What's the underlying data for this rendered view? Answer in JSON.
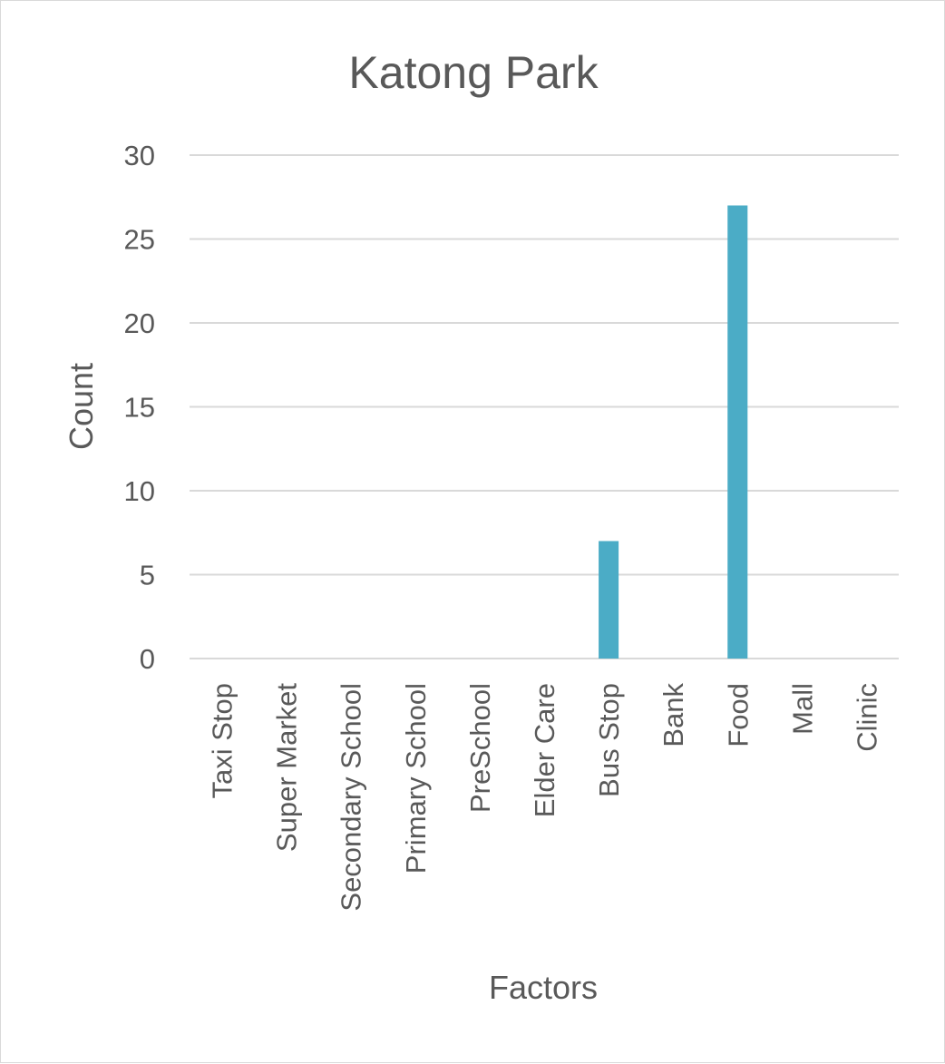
{
  "chart_data": {
    "type": "bar",
    "title": "Katong Park",
    "xlabel": "Factors",
    "ylabel": "Count",
    "categories": [
      "Taxi Stop",
      "Super Market",
      "Secondary School",
      "Primary School",
      "PreSchool",
      "Elder Care",
      "Bus Stop",
      "Bank",
      "Food",
      "Mall",
      "Clinic"
    ],
    "values": [
      0,
      0,
      0,
      0,
      0,
      0,
      7,
      0,
      27,
      0,
      0
    ],
    "ylim": [
      0,
      30
    ],
    "yticks": [
      0,
      5,
      10,
      15,
      20,
      25,
      30
    ],
    "grid": true,
    "legend": "none",
    "bar_color": "#4bacc6"
  }
}
